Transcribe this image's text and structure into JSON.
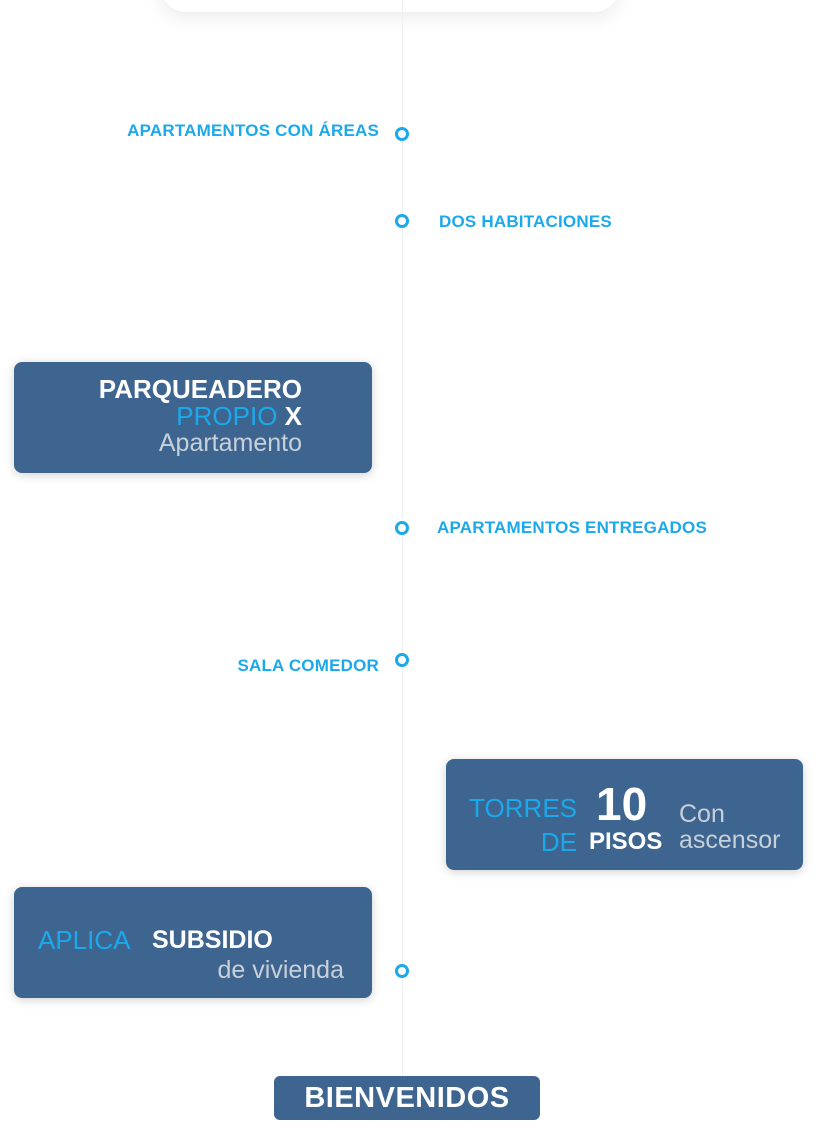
{
  "timeline": {
    "items": [
      {
        "label": "APARTAMENTOS CON ÁREAS"
      },
      {
        "label": "DOS HABITACIONES"
      },
      {
        "label": "APARTAMENTOS ENTREGADOS"
      },
      {
        "label": "SALA COMEDOR"
      }
    ]
  },
  "cards": {
    "parqueadero": {
      "line1": "PARQUEADERO",
      "line2_blue": "PROPIO",
      "line2_white": "X",
      "line3": "Apartamento"
    },
    "torres": {
      "torres_label": "TORRES",
      "de_label": "DE",
      "number": "10",
      "pisos_label": "PISOS",
      "con_label": "Con",
      "ascensor_label": "ascensor"
    },
    "subsidio": {
      "aplica_label": "APLICA",
      "subsidio_label": "SUBSIDIO",
      "vivienda_label": "de vivienda"
    }
  },
  "footer": {
    "bienvenidos_label": "BIENVENIDOS"
  },
  "colors": {
    "accent": "#1ba9ec",
    "card_bg": "#3d658f",
    "muted_text": "#c8d0da"
  }
}
